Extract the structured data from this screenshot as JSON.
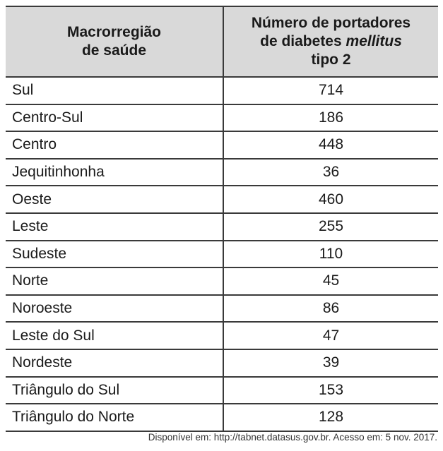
{
  "table": {
    "headers": {
      "region": [
        "Macrorregião",
        "de saúde"
      ],
      "count": {
        "line1": "Número de portadores",
        "line2_prefix": "de diabetes ",
        "line2_italic": "mellitus",
        "line3": "tipo 2"
      }
    },
    "rows": [
      {
        "region": "Sul",
        "count": "714"
      },
      {
        "region": "Centro-Sul",
        "count": "186"
      },
      {
        "region": "Centro",
        "count": "448"
      },
      {
        "region": "Jequitinhonha",
        "count": "36"
      },
      {
        "region": "Oeste",
        "count": "460"
      },
      {
        "region": "Leste",
        "count": "255"
      },
      {
        "region": "Sudeste",
        "count": "110"
      },
      {
        "region": "Norte",
        "count": "45"
      },
      {
        "region": "Noroeste",
        "count": "86"
      },
      {
        "region": "Leste do Sul",
        "count": "47"
      },
      {
        "region": "Nordeste",
        "count": "39"
      },
      {
        "region": "Triângulo do Sul",
        "count": "153"
      },
      {
        "region": "Triângulo do Norte",
        "count": "128"
      }
    ]
  },
  "source": "Disponível em: http://tabnet.datasus.gov.br. Acesso em: 5 nov. 2017."
}
